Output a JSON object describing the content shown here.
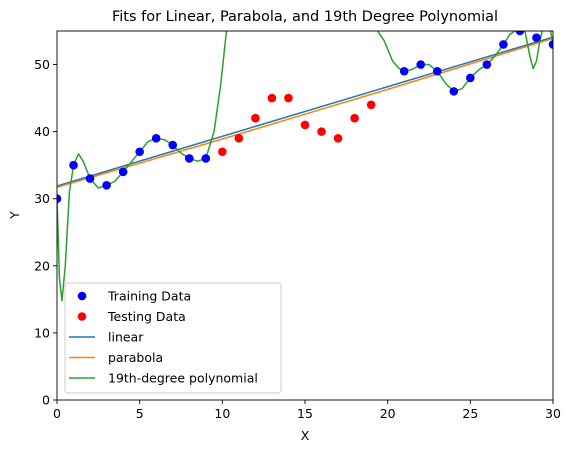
{
  "chart_data": {
    "type": "scatter",
    "title": "Fits for Linear, Parabola, and 19th Degree Polynomial",
    "xlabel": "X",
    "ylabel": "Y",
    "xlim": [
      0,
      30
    ],
    "ylim": [
      0,
      55
    ],
    "xticks": [
      0,
      5,
      10,
      15,
      20,
      25,
      30
    ],
    "yticks": [
      0,
      10,
      20,
      30,
      40,
      50
    ],
    "grid": false,
    "legend_placement": "lower-left",
    "series": [
      {
        "name": "Training Data",
        "kind": "scatter",
        "color": "#0000ff",
        "points": [
          [
            0,
            30
          ],
          [
            1,
            35
          ],
          [
            2,
            33
          ],
          [
            3,
            32
          ],
          [
            4,
            34
          ],
          [
            5,
            37
          ],
          [
            6,
            39
          ],
          [
            7,
            38
          ],
          [
            8,
            36
          ],
          [
            9,
            36
          ],
          [
            21,
            49
          ],
          [
            22,
            50
          ],
          [
            23,
            49
          ],
          [
            24,
            46
          ],
          [
            25,
            48
          ],
          [
            26,
            50
          ],
          [
            27,
            53
          ],
          [
            28,
            55
          ],
          [
            29,
            54
          ],
          [
            30,
            53
          ]
        ]
      },
      {
        "name": "Testing Data",
        "kind": "scatter",
        "color": "#ff0000",
        "points": [
          [
            10,
            37
          ],
          [
            11,
            39
          ],
          [
            12,
            42
          ],
          [
            13,
            45
          ],
          [
            14,
            45
          ],
          [
            15,
            41
          ],
          [
            16,
            40
          ],
          [
            17,
            39
          ],
          [
            18,
            42
          ],
          [
            19,
            44
          ]
        ]
      },
      {
        "name": "linear",
        "kind": "line",
        "color": "#1f77b4",
        "points": [
          [
            0,
            31.9
          ],
          [
            30,
            54.1
          ]
        ]
      },
      {
        "name": "parabola",
        "kind": "line",
        "color": "#ff7f0e",
        "points": [
          [
            0,
            31.7
          ],
          [
            10,
            38.9
          ],
          [
            15,
            42.6
          ],
          [
            20,
            46.3
          ],
          [
            30,
            53.9
          ]
        ]
      },
      {
        "name": "19th-degree polynomial",
        "kind": "line",
        "color": "#2ca02c",
        "points": [
          [
            0,
            30
          ],
          [
            0.15,
            18
          ],
          [
            0.3,
            14.8
          ],
          [
            0.5,
            20
          ],
          [
            0.75,
            31
          ],
          [
            1,
            35
          ],
          [
            1.3,
            36.7
          ],
          [
            1.6,
            35.5
          ],
          [
            2,
            33
          ],
          [
            2.5,
            31.6
          ],
          [
            3,
            32
          ],
          [
            3.5,
            32.6
          ],
          [
            4,
            34
          ],
          [
            5,
            37
          ],
          [
            5.5,
            38.5
          ],
          [
            6,
            39
          ],
          [
            6.5,
            38.8
          ],
          [
            7,
            38
          ],
          [
            7.5,
            36.8
          ],
          [
            8,
            36
          ],
          [
            8.5,
            35.6
          ],
          [
            9,
            36
          ],
          [
            9.5,
            40
          ],
          [
            9.9,
            47
          ],
          [
            10.25,
            55
          ],
          null,
          [
            19.4,
            55
          ],
          [
            19.8,
            53.5
          ],
          [
            20.3,
            50.5
          ],
          [
            20.7,
            49.4
          ],
          [
            21,
            49
          ],
          [
            21.5,
            49.3
          ],
          [
            22,
            50
          ],
          [
            22.5,
            50
          ],
          [
            23,
            49
          ],
          [
            23.5,
            47.2
          ],
          [
            24,
            46
          ],
          [
            24.5,
            46.4
          ],
          [
            25,
            48
          ],
          [
            25.5,
            49.2
          ],
          [
            26,
            50
          ],
          [
            26.5,
            51.3
          ],
          [
            27,
            53
          ],
          [
            27.4,
            54.5
          ],
          [
            27.7,
            55
          ],
          null,
          [
            28.3,
            55
          ],
          [
            28.6,
            51.3
          ],
          [
            28.8,
            49.4
          ],
          [
            29,
            50.5
          ],
          [
            29.2,
            53.5
          ],
          [
            29.35,
            55
          ],
          null,
          [
            29.85,
            55
          ],
          [
            30,
            53
          ]
        ]
      }
    ],
    "legend": [
      {
        "name": "Training Data",
        "symbol": "marker",
        "color": "#0000ff"
      },
      {
        "name": "Testing Data",
        "symbol": "marker",
        "color": "#ff0000"
      },
      {
        "name": "linear",
        "symbol": "line",
        "color": "#1f77b4"
      },
      {
        "name": "parabola",
        "symbol": "line",
        "color": "#ff7f0e"
      },
      {
        "name": "19th-degree polynomial",
        "symbol": "line",
        "color": "#2ca02c"
      }
    ]
  }
}
